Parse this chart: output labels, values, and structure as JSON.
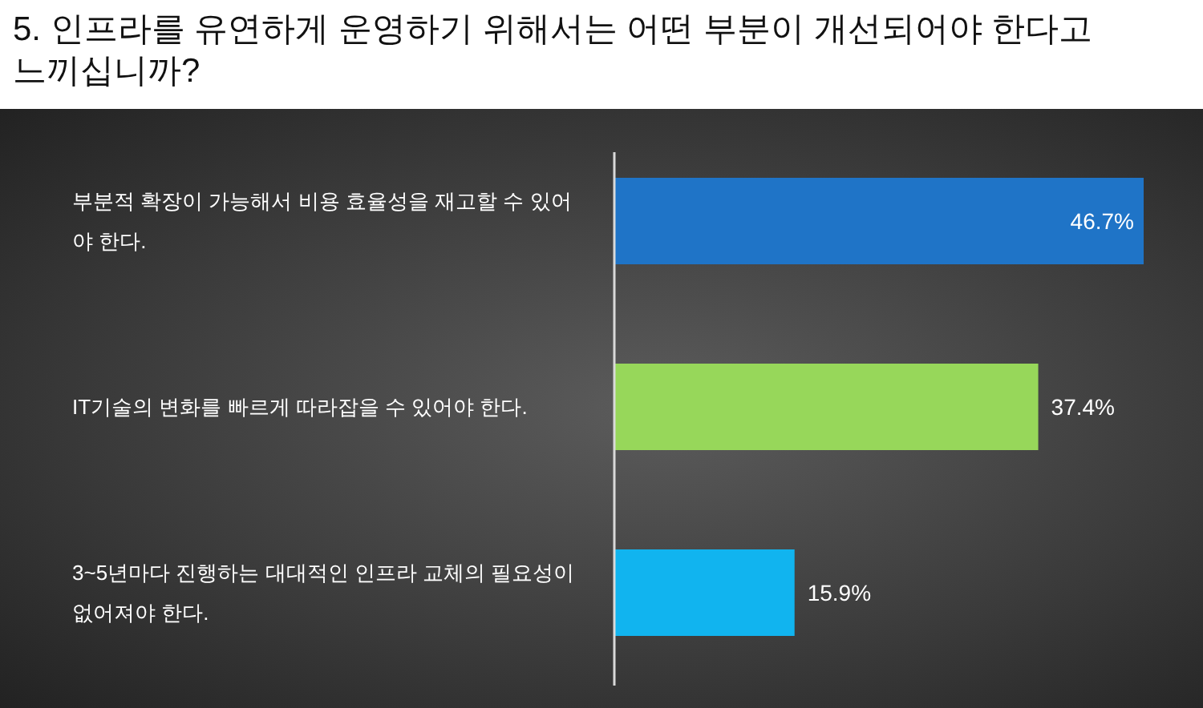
{
  "chart_data": {
    "type": "bar",
    "orientation": "horizontal",
    "title": "5. 인프라를 유연하게 운영하기 위해서는 어떤 부분이 개선되어야 한다고 느끼십니까?",
    "categories": [
      "부분적 확장이 가능해서 비용 효율성을 재고할 수 있어야 한다.",
      "IT기술의 변화를 빠르게 따라잡을 수 있어야 한다.",
      "3~5년마다 진행하는 대대적인 인프라 교체의 필요성이 없어져야 한다."
    ],
    "values": [
      46.7,
      37.4,
      15.9
    ],
    "colors": [
      "#1f74c7",
      "#97d75a",
      "#11b4ef"
    ],
    "value_labels": [
      "46.7%",
      "37.4%",
      "15.9%"
    ]
  }
}
